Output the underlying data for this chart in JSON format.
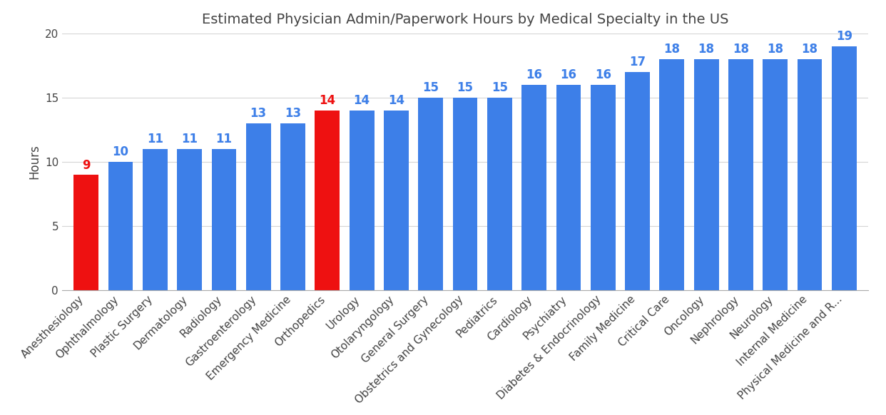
{
  "title": "Estimated Physician Admin/Paperwork Hours by Medical Specialty in the US",
  "ylabel": "Hours",
  "categories": [
    "Anesthesiology",
    "Ophthalmology",
    "Plastic Surgery",
    "Dermatology",
    "Radiology",
    "Gastroenterology",
    "Emergency Medicine",
    "Orthopedics",
    "Urology",
    "Otolaryngology",
    "General Surgery",
    "Obstetrics and Gynecology",
    "Pediatrics",
    "Cardiology",
    "Psychiatry",
    "Diabetes & Endocrinology",
    "Family Medicine",
    "Critical Care",
    "Oncology",
    "Nephrology",
    "Neurology",
    "Internal Medicine",
    "Physical Medicine and R..."
  ],
  "values": [
    9,
    10,
    11,
    11,
    11,
    13,
    13,
    14,
    14,
    14,
    15,
    15,
    15,
    16,
    16,
    16,
    17,
    18,
    18,
    18,
    18,
    18,
    19
  ],
  "bar_colors": [
    "#ee1111",
    "#3d7fe8",
    "#3d7fe8",
    "#3d7fe8",
    "#3d7fe8",
    "#3d7fe8",
    "#3d7fe8",
    "#ee1111",
    "#3d7fe8",
    "#3d7fe8",
    "#3d7fe8",
    "#3d7fe8",
    "#3d7fe8",
    "#3d7fe8",
    "#3d7fe8",
    "#3d7fe8",
    "#3d7fe8",
    "#3d7fe8",
    "#3d7fe8",
    "#3d7fe8",
    "#3d7fe8",
    "#3d7fe8",
    "#3d7fe8"
  ],
  "label_colors": [
    "#ee1111",
    "#3d7fe8",
    "#3d7fe8",
    "#3d7fe8",
    "#3d7fe8",
    "#3d7fe8",
    "#3d7fe8",
    "#ee1111",
    "#3d7fe8",
    "#3d7fe8",
    "#3d7fe8",
    "#3d7fe8",
    "#3d7fe8",
    "#3d7fe8",
    "#3d7fe8",
    "#3d7fe8",
    "#3d7fe8",
    "#3d7fe8",
    "#3d7fe8",
    "#3d7fe8",
    "#3d7fe8",
    "#3d7fe8",
    "#3d7fe8"
  ],
  "ylim": [
    0,
    20
  ],
  "yticks": [
    0,
    5,
    10,
    15,
    20
  ],
  "background_color": "#ffffff",
  "grid_color": "#d5d5d5",
  "title_fontsize": 14,
  "ylabel_fontsize": 12,
  "tick_fontsize": 11,
  "bar_label_fontsize": 12,
  "bar_width": 0.72
}
